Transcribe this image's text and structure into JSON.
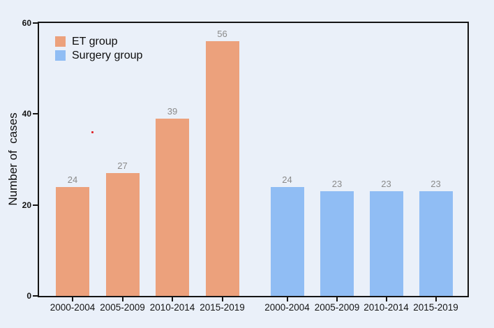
{
  "figure": {
    "background_color": "#EAF0F9",
    "frame_color": "#141414"
  },
  "chart_data": {
    "type": "bar",
    "title": "",
    "xlabel": "",
    "ylabel": "Number of  cases",
    "ylim": [
      0,
      60
    ],
    "yticks": [
      0,
      20,
      40,
      60
    ],
    "grid": false,
    "legend_position": "top-left inside plot",
    "categories": [
      "2000-2004",
      "2005-2009",
      "2010-2014",
      "2015-2019"
    ],
    "series": [
      {
        "name": "ET group",
        "color": "#ECA17C",
        "values": [
          24,
          27,
          39,
          56
        ]
      },
      {
        "name": "Surgery group",
        "color": "#90BDF4",
        "values": [
          24,
          23,
          23,
          23
        ]
      }
    ],
    "value_label_color": "#8a8a8a"
  }
}
